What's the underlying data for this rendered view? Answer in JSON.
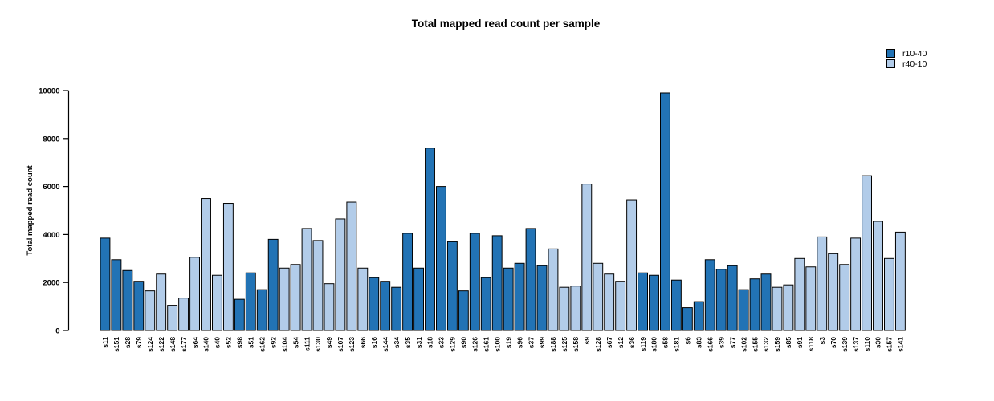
{
  "chart_data": {
    "type": "bar",
    "title": "Total mapped read count per sample",
    "xlabel": "",
    "ylabel": "Total mapped read count",
    "ylim": [
      0,
      10000
    ],
    "yticks": [
      0,
      2000,
      4000,
      6000,
      8000,
      10000
    ],
    "grid": false,
    "legend_position": "top-right",
    "legend": [
      {
        "name": "r10-40",
        "color": "#2273b5"
      },
      {
        "name": "r40-10",
        "color": "#b2cce9"
      }
    ],
    "bars": [
      {
        "label": "s11",
        "value": 3850,
        "group": "r10-40"
      },
      {
        "label": "s151",
        "value": 2950,
        "group": "r10-40"
      },
      {
        "label": "s28",
        "value": 2500,
        "group": "r10-40"
      },
      {
        "label": "s79",
        "value": 2050,
        "group": "r10-40"
      },
      {
        "label": "s124",
        "value": 1650,
        "group": "r40-10"
      },
      {
        "label": "s122",
        "value": 2350,
        "group": "r40-10"
      },
      {
        "label": "s148",
        "value": 1050,
        "group": "r40-10"
      },
      {
        "label": "s177",
        "value": 1350,
        "group": "r40-10"
      },
      {
        "label": "s64",
        "value": 3050,
        "group": "r40-10"
      },
      {
        "label": "s140",
        "value": 5500,
        "group": "r40-10"
      },
      {
        "label": "s40",
        "value": 2300,
        "group": "r40-10"
      },
      {
        "label": "s52",
        "value": 5300,
        "group": "r40-10"
      },
      {
        "label": "s98",
        "value": 1300,
        "group": "r10-40"
      },
      {
        "label": "s51",
        "value": 2400,
        "group": "r10-40"
      },
      {
        "label": "s162",
        "value": 1700,
        "group": "r10-40"
      },
      {
        "label": "s92",
        "value": 3800,
        "group": "r10-40"
      },
      {
        "label": "s104",
        "value": 2600,
        "group": "r40-10"
      },
      {
        "label": "s54",
        "value": 2750,
        "group": "r40-10"
      },
      {
        "label": "s111",
        "value": 4250,
        "group": "r40-10"
      },
      {
        "label": "s130",
        "value": 3750,
        "group": "r40-10"
      },
      {
        "label": "s49",
        "value": 1950,
        "group": "r40-10"
      },
      {
        "label": "s107",
        "value": 4650,
        "group": "r40-10"
      },
      {
        "label": "s123",
        "value": 5350,
        "group": "r40-10"
      },
      {
        "label": "s66",
        "value": 2600,
        "group": "r40-10"
      },
      {
        "label": "s16",
        "value": 2200,
        "group": "r10-40"
      },
      {
        "label": "s144",
        "value": 2050,
        "group": "r10-40"
      },
      {
        "label": "s34",
        "value": 1800,
        "group": "r10-40"
      },
      {
        "label": "s35",
        "value": 4050,
        "group": "r10-40"
      },
      {
        "label": "s31",
        "value": 2600,
        "group": "r10-40"
      },
      {
        "label": "s18",
        "value": 7600,
        "group": "r10-40"
      },
      {
        "label": "s33",
        "value": 6000,
        "group": "r10-40"
      },
      {
        "label": "s129",
        "value": 3700,
        "group": "r10-40"
      },
      {
        "label": "s90",
        "value": 1650,
        "group": "r10-40"
      },
      {
        "label": "s126",
        "value": 4050,
        "group": "r10-40"
      },
      {
        "label": "s161",
        "value": 2200,
        "group": "r10-40"
      },
      {
        "label": "s100",
        "value": 3950,
        "group": "r10-40"
      },
      {
        "label": "s19",
        "value": 2600,
        "group": "r10-40"
      },
      {
        "label": "s96",
        "value": 2800,
        "group": "r10-40"
      },
      {
        "label": "s37",
        "value": 4250,
        "group": "r10-40"
      },
      {
        "label": "s99",
        "value": 2700,
        "group": "r10-40"
      },
      {
        "label": "s188",
        "value": 3400,
        "group": "r40-10"
      },
      {
        "label": "s125",
        "value": 1800,
        "group": "r40-10"
      },
      {
        "label": "s158",
        "value": 1850,
        "group": "r40-10"
      },
      {
        "label": "s9",
        "value": 6100,
        "group": "r40-10"
      },
      {
        "label": "s128",
        "value": 2800,
        "group": "r40-10"
      },
      {
        "label": "s67",
        "value": 2350,
        "group": "r40-10"
      },
      {
        "label": "s12",
        "value": 2050,
        "group": "r40-10"
      },
      {
        "label": "s36",
        "value": 5450,
        "group": "r40-10"
      },
      {
        "label": "s119",
        "value": 2400,
        "group": "r10-40"
      },
      {
        "label": "s180",
        "value": 2300,
        "group": "r10-40"
      },
      {
        "label": "s58",
        "value": 9900,
        "group": "r10-40"
      },
      {
        "label": "s181",
        "value": 2100,
        "group": "r10-40"
      },
      {
        "label": "s6",
        "value": 950,
        "group": "r10-40"
      },
      {
        "label": "s83",
        "value": 1200,
        "group": "r10-40"
      },
      {
        "label": "s166",
        "value": 2950,
        "group": "r10-40"
      },
      {
        "label": "s39",
        "value": 2550,
        "group": "r10-40"
      },
      {
        "label": "s77",
        "value": 2700,
        "group": "r10-40"
      },
      {
        "label": "s102",
        "value": 1700,
        "group": "r10-40"
      },
      {
        "label": "s155",
        "value": 2150,
        "group": "r10-40"
      },
      {
        "label": "s132",
        "value": 2350,
        "group": "r10-40"
      },
      {
        "label": "s159",
        "value": 1800,
        "group": "r40-10"
      },
      {
        "label": "s85",
        "value": 1900,
        "group": "r40-10"
      },
      {
        "label": "s91",
        "value": 3000,
        "group": "r40-10"
      },
      {
        "label": "s118",
        "value": 2650,
        "group": "r40-10"
      },
      {
        "label": "s3",
        "value": 3900,
        "group": "r40-10"
      },
      {
        "label": "s70",
        "value": 3200,
        "group": "r40-10"
      },
      {
        "label": "s139",
        "value": 2750,
        "group": "r40-10"
      },
      {
        "label": "s137",
        "value": 3850,
        "group": "r40-10"
      },
      {
        "label": "s110",
        "value": 6450,
        "group": "r40-10"
      },
      {
        "label": "s30",
        "value": 4550,
        "group": "r40-10"
      },
      {
        "label": "s157",
        "value": 3000,
        "group": "r40-10"
      },
      {
        "label": "s141",
        "value": 4100,
        "group": "r40-10"
      }
    ]
  }
}
